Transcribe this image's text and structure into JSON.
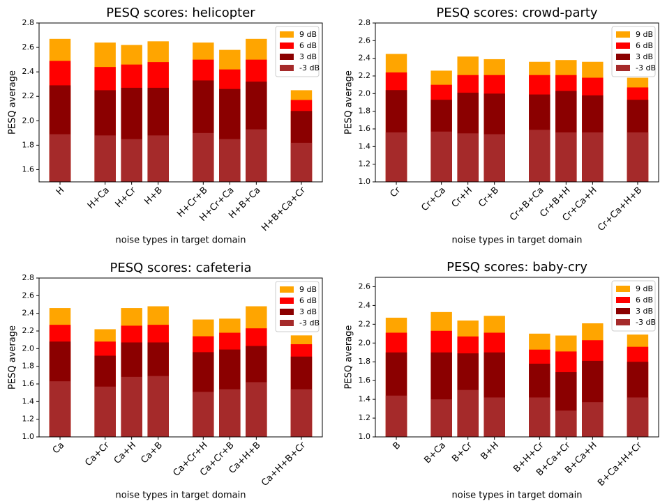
{
  "chart_data": [
    {
      "type": "bar",
      "title": "PESQ scores: helicopter",
      "xlabel": "noise types in target domain",
      "ylabel": "PESQ average",
      "categories": [
        "H",
        null,
        "H+Ca",
        "H+Cr",
        "H+B",
        null,
        "H+Cr+B",
        "H+Cr+Ca",
        "H+B+Ca",
        null,
        "H+B+Ca+Cr"
      ],
      "series": [
        {
          "name": "9 dB",
          "color": "#ffa500",
          "values": [
            2.67,
            null,
            2.64,
            2.62,
            2.65,
            null,
            2.64,
            2.58,
            2.67,
            null,
            2.25
          ]
        },
        {
          "name": "6 dB",
          "color": "#ff0000",
          "values": [
            2.49,
            null,
            2.44,
            2.46,
            2.48,
            null,
            2.5,
            2.42,
            2.5,
            null,
            2.17
          ]
        },
        {
          "name": "3 dB",
          "color": "#8b0000",
          "values": [
            2.29,
            null,
            2.25,
            2.27,
            2.27,
            null,
            2.33,
            2.26,
            2.32,
            null,
            2.08
          ]
        },
        {
          "name": "-3 dB",
          "color": "#a52a2a",
          "values": [
            1.89,
            null,
            1.88,
            1.85,
            1.88,
            null,
            1.9,
            1.85,
            1.93,
            null,
            1.82
          ]
        }
      ],
      "ylim": [
        1.5,
        2.8
      ],
      "yticks": [
        1.6,
        1.8,
        {
          "value": 2,
          "label": "2.0"
        },
        2.2,
        2.4,
        2.6,
        2.8
      ],
      "legend": "upper right"
    },
    {
      "type": "bar",
      "title": "PESQ scores: crowd-party",
      "xlabel": "noise types in target domain",
      "ylabel": "PESQ average",
      "categories": [
        "Cr",
        null,
        "Cr+Ca",
        "Cr+H",
        "Cr+B",
        null,
        "Cr+B+Ca",
        "Cr+B+H",
        "Cr+Ca+H",
        null,
        "Cr+Ca+H+B"
      ],
      "series": [
        {
          "name": "9 dB",
          "color": "#ffa500",
          "values": [
            2.45,
            null,
            2.26,
            2.42,
            2.39,
            null,
            2.36,
            2.38,
            2.36,
            null,
            2.18
          ]
        },
        {
          "name": "6 dB",
          "color": "#ff0000",
          "values": [
            2.24,
            null,
            2.1,
            2.21,
            2.21,
            null,
            2.21,
            2.21,
            2.18,
            null,
            2.07
          ]
        },
        {
          "name": "3 dB",
          "color": "#8b0000",
          "values": [
            2.04,
            null,
            1.93,
            2.01,
            2.0,
            null,
            1.99,
            2.03,
            1.98,
            null,
            1.93
          ]
        },
        {
          "name": "-3 dB",
          "color": "#a52a2a",
          "values": [
            1.56,
            null,
            1.57,
            1.55,
            1.54,
            null,
            1.59,
            1.56,
            1.56,
            null,
            1.56
          ]
        }
      ],
      "ylim": [
        1,
        2.8
      ],
      "yticks": [
        {
          "value": 1,
          "label": "1.0"
        },
        1.2,
        1.4,
        1.6,
        1.8,
        {
          "value": 2,
          "label": "2.0"
        },
        2.2,
        2.4,
        2.6,
        2.8
      ],
      "legend": "upper right"
    },
    {
      "type": "bar",
      "title": "PESQ scores: cafeteria",
      "xlabel": "noise types in target domain",
      "ylabel": "PESQ average",
      "categories": [
        "Ca",
        null,
        "Ca+Cr",
        "Ca+H",
        "Ca+B",
        null,
        "Ca+Cr+H",
        "Ca+Cr+B",
        "Ca+H+B",
        null,
        "Ca+H+B+Cr"
      ],
      "series": [
        {
          "name": "9 dB",
          "color": "#ffa500",
          "values": [
            2.46,
            null,
            2.22,
            2.46,
            2.48,
            null,
            2.33,
            2.34,
            2.48,
            null,
            2.15
          ]
        },
        {
          "name": "6 dB",
          "color": "#ff0000",
          "values": [
            2.27,
            null,
            2.08,
            2.26,
            2.27,
            null,
            2.14,
            2.18,
            2.23,
            null,
            2.05
          ]
        },
        {
          "name": "3 dB",
          "color": "#8b0000",
          "values": [
            2.08,
            null,
            1.92,
            2.07,
            2.07,
            null,
            1.96,
            1.99,
            2.03,
            null,
            1.91
          ]
        },
        {
          "name": "-3 dB",
          "color": "#a52a2a",
          "values": [
            1.63,
            null,
            1.57,
            1.68,
            1.69,
            null,
            1.51,
            1.54,
            1.62,
            null,
            1.54
          ]
        }
      ],
      "ylim": [
        1,
        2.8
      ],
      "yticks": [
        {
          "value": 1,
          "label": "1.0"
        },
        1.2,
        1.4,
        1.6,
        1.8,
        {
          "value": 2,
          "label": "2.0"
        },
        2.2,
        2.4,
        2.6,
        2.8
      ],
      "legend": "upper right"
    },
    {
      "type": "bar",
      "title": "PESQ scores: baby-cry",
      "xlabel": "noise types in target domain",
      "ylabel": "PESQ average",
      "categories": [
        "B",
        null,
        "B+Ca",
        "B+Cr",
        "B+H",
        null,
        "B+H+Cr",
        "B+Ca+Cr",
        "B+Ca+H",
        null,
        "B+Ca+H+Cr"
      ],
      "series": [
        {
          "name": "9 dB",
          "color": "#ffa500",
          "values": [
            2.27,
            null,
            2.33,
            2.24,
            2.29,
            null,
            2.1,
            2.08,
            2.21,
            null,
            2.09
          ]
        },
        {
          "name": "6 dB",
          "color": "#ff0000",
          "values": [
            2.11,
            null,
            2.13,
            2.07,
            2.11,
            null,
            1.93,
            1.91,
            2.03,
            null,
            1.96
          ]
        },
        {
          "name": "3 dB",
          "color": "#8b0000",
          "values": [
            1.9,
            null,
            1.9,
            1.89,
            1.9,
            null,
            1.78,
            1.69,
            1.81,
            null,
            1.8
          ]
        },
        {
          "name": "-3 dB",
          "color": "#a52a2a",
          "values": [
            1.44,
            null,
            1.4,
            1.5,
            1.42,
            null,
            1.42,
            1.28,
            1.37,
            null,
            1.42
          ]
        }
      ],
      "ylim": [
        1,
        2.7
      ],
      "yticks": [
        {
          "value": 1,
          "label": "1.0"
        },
        1.2,
        1.4,
        1.6,
        1.8,
        {
          "value": 2,
          "label": "2.0"
        },
        2.2,
        2.4,
        2.6
      ],
      "legend": "upper right"
    }
  ]
}
